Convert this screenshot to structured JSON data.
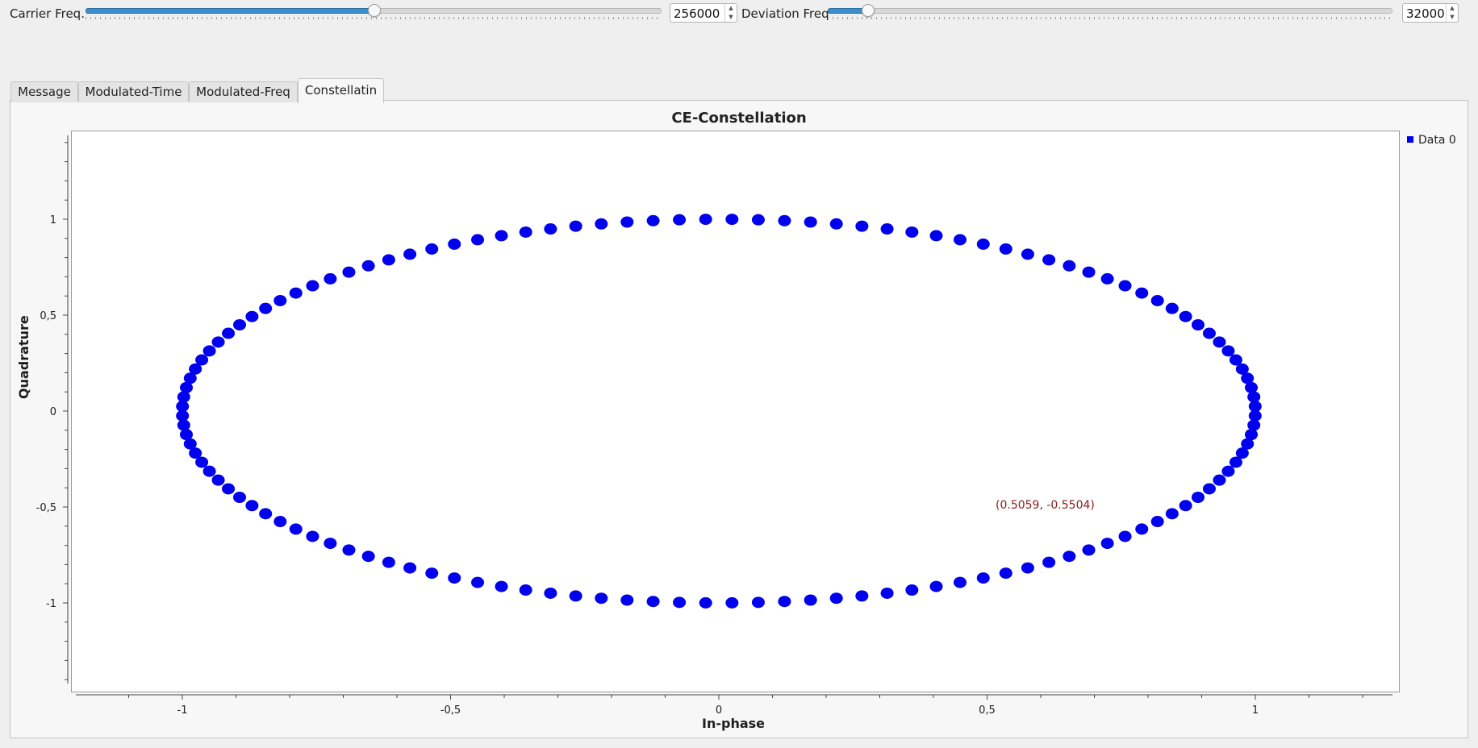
{
  "controls": {
    "carrier": {
      "label": "Carrier Freq.",
      "value": "256000",
      "level": 0.5
    },
    "deviation": {
      "label": "Deviation Freq",
      "value": "32000",
      "level": 0.07
    }
  },
  "tabs": [
    {
      "label": "Message",
      "active": false
    },
    {
      "label": "Modulated-Time",
      "active": false
    },
    {
      "label": "Modulated-Freq",
      "active": false
    },
    {
      "label": "Constellatin",
      "active": true
    }
  ],
  "plot": {
    "title": "CE-Constellation",
    "legend": "Data 0",
    "point_color": "#0000ee",
    "readout": "(0.5059, -0.5504)",
    "readout_color": "#8b1a1a"
  },
  "chart_data": {
    "type": "scatter",
    "title": "CE-Constellation",
    "xlabel": "In-phase",
    "ylabel": "Quadrature",
    "xlim": [
      -1.1,
      1.1
    ],
    "ylim": [
      -1.45,
      1.45
    ],
    "x_ticks": [
      -1,
      -0.5,
      0,
      0.5,
      1
    ],
    "x_tick_labels": [
      "-1",
      "-0,5",
      "0",
      "0,5",
      "1"
    ],
    "y_ticks": [
      1,
      0.5,
      0,
      -0.5,
      -1
    ],
    "y_tick_labels": [
      "1",
      "0,5",
      "0",
      "-0,5",
      "-1"
    ],
    "grid": false,
    "legend_position": "top-right",
    "series": [
      {
        "name": "Data 0",
        "points": "unit circle, 128 evenly spaced samples (cos θ, sin θ)"
      }
    ]
  }
}
